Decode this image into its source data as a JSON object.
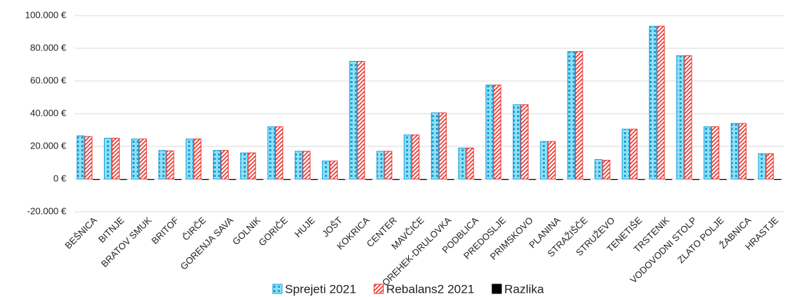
{
  "chart_data": {
    "type": "bar",
    "categories": [
      "BEŠNICA",
      "BITNJE",
      "BRATOV SMUK",
      "BRITOF",
      "ČIRČE",
      "GORENJA SAVA",
      "GOLNIK",
      "GORIČE",
      "HUJE",
      "JOŠT",
      "KOKRICA",
      "CENTER",
      "MAVČIČE",
      "OREHEK-DRULOVKA",
      "PODBLICA",
      "PREDOSLJE",
      "PRIMSKOVO",
      "PLANINA",
      "STRAŽIŠČE",
      "STRUŽEVO",
      "TENETIŠE",
      "TRSTENIK",
      "VODOVODNI STOLP",
      "ZLATO POLJE",
      "ŽABNICA",
      "HRASTJE"
    ],
    "series": [
      {
        "name": "Sprejeti 2021",
        "color": "#1e9fd8",
        "values": [
          26500,
          25000,
          24500,
          17500,
          24500,
          17500,
          16000,
          32000,
          17000,
          11000,
          72000,
          17000,
          27000,
          40500,
          19000,
          57500,
          45500,
          23000,
          78000,
          12000,
          30500,
          93500,
          75500,
          32000,
          34000,
          15500
        ]
      },
      {
        "name": "Rebalans2 2021",
        "color": "#e8302a",
        "values": [
          26000,
          25000,
          24500,
          17200,
          24500,
          17500,
          16000,
          32000,
          17000,
          11000,
          72000,
          17000,
          27000,
          40500,
          19000,
          57500,
          45500,
          23000,
          78000,
          11500,
          30500,
          93500,
          75500,
          32000,
          34000,
          15500
        ]
      },
      {
        "name": "Razlika",
        "color": "#000000",
        "values": [
          -500,
          0,
          0,
          -300,
          0,
          0,
          0,
          0,
          0,
          0,
          0,
          0,
          0,
          0,
          0,
          0,
          0,
          0,
          0,
          -500,
          0,
          0,
          0,
          0,
          0,
          0
        ]
      }
    ],
    "ylim": [
      -20000,
      100000
    ],
    "yticks": [
      {
        "value": -20000,
        "label": "-20.000 €"
      },
      {
        "value": 0,
        "label": "0 €"
      },
      {
        "value": 20000,
        "label": "20.000 €"
      },
      {
        "value": 40000,
        "label": "40.000 €"
      },
      {
        "value": 60000,
        "label": "60.000 €"
      },
      {
        "value": 80000,
        "label": "80.000 €"
      },
      {
        "value": 100000,
        "label": "100.000 €"
      }
    ],
    "grid": true,
    "legend": "bottom"
  }
}
